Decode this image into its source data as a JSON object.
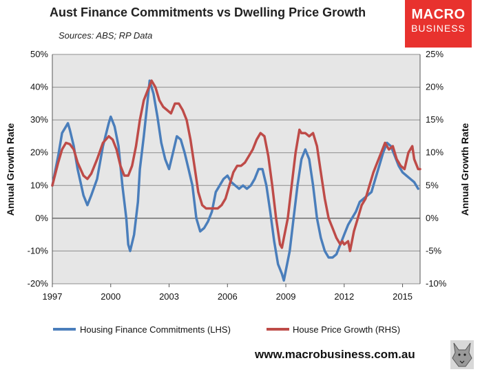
{
  "header": {
    "title": "Aust Finance Commitments vs Dwelling Price Growth",
    "subtitle": "Sources: ABS; RP Data"
  },
  "logo": {
    "line1": "MACRO",
    "line2": "BUSINESS"
  },
  "footer": {
    "url": "www.macrobusiness.com.au"
  },
  "colors": {
    "lhs": "#4a7ebb",
    "rhs": "#be4b48",
    "grid": "#8c8c8c",
    "plot_bg": "#e6e6e6"
  },
  "chart_data": {
    "type": "line",
    "title": "Aust Finance Commitments vs Dwelling Price Growth",
    "xlabel": "",
    "ylabel_left": "Annual Growth Rate",
    "ylabel_right": "Annual Growth Rate",
    "xlim": [
      1997,
      2015.9
    ],
    "ylim_left": [
      -20,
      50
    ],
    "ylim_right": [
      -10,
      25
    ],
    "x_ticks": [
      1997,
      2000,
      2003,
      2006,
      2009,
      2012,
      2015
    ],
    "y_left_ticks": [
      -20,
      -10,
      0,
      10,
      20,
      30,
      40,
      50
    ],
    "y_right_ticks": [
      -10,
      -5,
      0,
      5,
      10,
      15,
      20,
      25
    ],
    "y_left_tick_labels": [
      "-20%",
      "-10%",
      "0%",
      "10%",
      "20%",
      "30%",
      "40%",
      "50%"
    ],
    "y_right_tick_labels": [
      "-10%",
      "-5%",
      "0%",
      "5%",
      "10%",
      "15%",
      "20%",
      "25%"
    ],
    "legend_position": "bottom",
    "series": [
      {
        "name": "Housing Finance Commitments (LHS)",
        "axis": "left",
        "color": "#4a7ebb",
        "points": [
          [
            1997.0,
            10
          ],
          [
            1997.3,
            19
          ],
          [
            1997.5,
            26
          ],
          [
            1997.7,
            28
          ],
          [
            1997.8,
            29
          ],
          [
            1997.9,
            27
          ],
          [
            1998.1,
            22
          ],
          [
            1998.3,
            15
          ],
          [
            1998.6,
            7
          ],
          [
            1998.8,
            4
          ],
          [
            1999.0,
            7
          ],
          [
            1999.3,
            12
          ],
          [
            1999.6,
            22
          ],
          [
            1999.9,
            29
          ],
          [
            2000.0,
            31
          ],
          [
            2000.2,
            28
          ],
          [
            2000.4,
            22
          ],
          [
            2000.6,
            10
          ],
          [
            2000.8,
            0
          ],
          [
            2000.9,
            -8
          ],
          [
            2001.0,
            -10
          ],
          [
            2001.2,
            -5
          ],
          [
            2001.4,
            5
          ],
          [
            2001.5,
            15
          ],
          [
            2001.7,
            25
          ],
          [
            2001.9,
            36
          ],
          [
            2002.0,
            42
          ],
          [
            2002.2,
            38
          ],
          [
            2002.4,
            31
          ],
          [
            2002.6,
            23
          ],
          [
            2002.8,
            18
          ],
          [
            2003.0,
            15
          ],
          [
            2003.2,
            20
          ],
          [
            2003.4,
            25
          ],
          [
            2003.6,
            24
          ],
          [
            2003.8,
            20
          ],
          [
            2004.0,
            15
          ],
          [
            2004.2,
            10
          ],
          [
            2004.4,
            0
          ],
          [
            2004.6,
            -4
          ],
          [
            2004.8,
            -3
          ],
          [
            2005.0,
            -1
          ],
          [
            2005.2,
            2
          ],
          [
            2005.4,
            8
          ],
          [
            2005.6,
            10
          ],
          [
            2005.8,
            12
          ],
          [
            2006.0,
            13
          ],
          [
            2006.2,
            11
          ],
          [
            2006.4,
            10
          ],
          [
            2006.6,
            9
          ],
          [
            2006.8,
            10
          ],
          [
            2007.0,
            9
          ],
          [
            2007.2,
            10
          ],
          [
            2007.4,
            12
          ],
          [
            2007.6,
            15
          ],
          [
            2007.8,
            15
          ],
          [
            2008.0,
            10
          ],
          [
            2008.2,
            2
          ],
          [
            2008.4,
            -7
          ],
          [
            2008.6,
            -14
          ],
          [
            2008.8,
            -17
          ],
          [
            2008.9,
            -19
          ],
          [
            2009.0,
            -16
          ],
          [
            2009.2,
            -10
          ],
          [
            2009.4,
            0
          ],
          [
            2009.6,
            10
          ],
          [
            2009.8,
            18
          ],
          [
            2010.0,
            21
          ],
          [
            2010.2,
            18
          ],
          [
            2010.4,
            10
          ],
          [
            2010.6,
            0
          ],
          [
            2010.8,
            -6
          ],
          [
            2011.0,
            -10
          ],
          [
            2011.2,
            -12
          ],
          [
            2011.4,
            -12
          ],
          [
            2011.6,
            -11
          ],
          [
            2011.8,
            -8
          ],
          [
            2012.0,
            -5
          ],
          [
            2012.2,
            -2
          ],
          [
            2012.4,
            0
          ],
          [
            2012.6,
            2
          ],
          [
            2012.8,
            5
          ],
          [
            2013.0,
            6
          ],
          [
            2013.2,
            7
          ],
          [
            2013.4,
            8
          ],
          [
            2013.6,
            12
          ],
          [
            2013.8,
            16
          ],
          [
            2014.0,
            20
          ],
          [
            2014.2,
            23
          ],
          [
            2014.4,
            22
          ],
          [
            2014.6,
            19
          ],
          [
            2014.8,
            16
          ],
          [
            2015.0,
            14
          ],
          [
            2015.2,
            13
          ],
          [
            2015.4,
            12
          ],
          [
            2015.6,
            11
          ],
          [
            2015.8,
            9
          ]
        ]
      },
      {
        "name": "House Price Growth (RHS)",
        "axis": "right",
        "color": "#be4b48",
        "points": [
          [
            1997.0,
            5
          ],
          [
            1997.3,
            8.5
          ],
          [
            1997.5,
            10.5
          ],
          [
            1997.7,
            11.5
          ],
          [
            1997.9,
            11.3
          ],
          [
            1998.1,
            10.5
          ],
          [
            1998.3,
            8.5
          ],
          [
            1998.6,
            6.5
          ],
          [
            1998.8,
            6
          ],
          [
            1999.0,
            6.8
          ],
          [
            1999.3,
            9
          ],
          [
            1999.6,
            11.5
          ],
          [
            1999.9,
            12.5
          ],
          [
            2000.1,
            12
          ],
          [
            2000.3,
            10.5
          ],
          [
            2000.5,
            8
          ],
          [
            2000.7,
            6.5
          ],
          [
            2000.9,
            6.5
          ],
          [
            2001.1,
            8
          ],
          [
            2001.3,
            11
          ],
          [
            2001.5,
            15
          ],
          [
            2001.7,
            18
          ],
          [
            2001.9,
            19.5
          ],
          [
            2002.1,
            21
          ],
          [
            2002.3,
            20
          ],
          [
            2002.5,
            18
          ],
          [
            2002.7,
            17
          ],
          [
            2002.9,
            16.5
          ],
          [
            2003.1,
            16
          ],
          [
            2003.3,
            17.5
          ],
          [
            2003.5,
            17.5
          ],
          [
            2003.7,
            16.5
          ],
          [
            2003.9,
            15
          ],
          [
            2004.1,
            12
          ],
          [
            2004.3,
            8
          ],
          [
            2004.5,
            4
          ],
          [
            2004.7,
            2
          ],
          [
            2004.9,
            1.5
          ],
          [
            2005.1,
            1.5
          ],
          [
            2005.3,
            1.5
          ],
          [
            2005.5,
            1.5
          ],
          [
            2005.7,
            2
          ],
          [
            2005.9,
            3
          ],
          [
            2006.1,
            5
          ],
          [
            2006.3,
            7
          ],
          [
            2006.5,
            8
          ],
          [
            2006.7,
            8
          ],
          [
            2006.9,
            8.5
          ],
          [
            2007.1,
            9.5
          ],
          [
            2007.3,
            10.5
          ],
          [
            2007.5,
            12
          ],
          [
            2007.7,
            13
          ],
          [
            2007.9,
            12.5
          ],
          [
            2008.1,
            9.5
          ],
          [
            2008.3,
            5
          ],
          [
            2008.5,
            0
          ],
          [
            2008.7,
            -4
          ],
          [
            2008.8,
            -4.5
          ],
          [
            2008.9,
            -3
          ],
          [
            2009.1,
            0
          ],
          [
            2009.3,
            5
          ],
          [
            2009.5,
            10
          ],
          [
            2009.7,
            13.5
          ],
          [
            2009.8,
            13
          ],
          [
            2010.0,
            13
          ],
          [
            2010.2,
            12.5
          ],
          [
            2010.4,
            13
          ],
          [
            2010.6,
            11
          ],
          [
            2010.8,
            7
          ],
          [
            2011.0,
            3
          ],
          [
            2011.2,
            0
          ],
          [
            2011.4,
            -1.5
          ],
          [
            2011.6,
            -3
          ],
          [
            2011.8,
            -4
          ],
          [
            2011.9,
            -3.5
          ],
          [
            2012.0,
            -4
          ],
          [
            2012.2,
            -3.5
          ],
          [
            2012.3,
            -5
          ],
          [
            2012.5,
            -2
          ],
          [
            2012.7,
            0
          ],
          [
            2012.9,
            2
          ],
          [
            2013.1,
            3
          ],
          [
            2013.3,
            5
          ],
          [
            2013.5,
            7
          ],
          [
            2013.7,
            8.5
          ],
          [
            2013.9,
            10
          ],
          [
            2014.1,
            11.5
          ],
          [
            2014.3,
            10.5
          ],
          [
            2014.5,
            11
          ],
          [
            2014.7,
            9
          ],
          [
            2014.9,
            8
          ],
          [
            2015.1,
            7.5
          ],
          [
            2015.3,
            10
          ],
          [
            2015.5,
            11
          ],
          [
            2015.6,
            9
          ],
          [
            2015.8,
            7.5
          ],
          [
            2015.9,
            7.5
          ]
        ]
      }
    ]
  }
}
